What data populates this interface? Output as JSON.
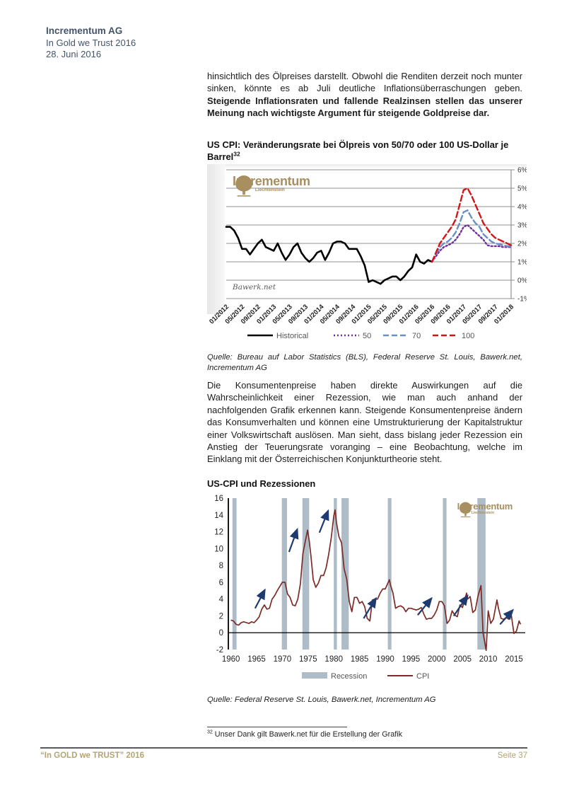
{
  "header": {
    "company": "Incrementum AG",
    "report": "In Gold we Trust 2016",
    "date": "28. Juni 2016"
  },
  "paragraph1": {
    "normal": "hinsichtlich des Ölpreises darstellt. Obwohl die Renditen derzeit noch munter sinken, könnte es ab Juli deutliche Inflationsüberraschungen geben. ",
    "bold": "Steigende Inflationsraten und fallende Realzinsen stellen das unserer Meinung nach wichtigste Argument für steigende Goldpreise dar."
  },
  "chart1": {
    "title": "US CPI: Veränderungsrate bei Ölpreis von 50/70 oder 100 US-Dollar je Barrel",
    "footnote_ref": "32",
    "logo_name": "Incrementum",
    "logo_sub": "Liechtenstein",
    "watermark": "Bawerk.net",
    "source": "Quelle: Bureau auf Labor Statistics (BLS), Federal Reserve St. Louis, Bawerk.net, Incrementum AG"
  },
  "paragraph2": "Die Konsumentenpreise haben direkte Auswirkungen auf die Wahrscheinlichkeit einer Rezession, wie man auch anhand der nachfolgenden Grafik erkennen kann. Steigende Konsumentenpreise ändern das Konsumverhalten und können eine Umstrukturierung der Kapitalstruktur einer Volkswirtschaft auslösen. Man sieht, dass bislang jeder Rezession ein Anstieg der Teuerungsrate voranging – eine Beobachtung, welche im Einklang mit der Österreichischen Konjunkturtheorie steht.",
  "chart2": {
    "title": "US-CPI und Rezessionen",
    "logo_name": "Incrementum",
    "logo_sub": "Liechtenstein",
    "source": "Quelle: Federal Reserve St. Louis, Bawerk.net, Incrementum AG"
  },
  "footnote": {
    "ref": "32",
    "text": "Unser Dank gilt Bawerk.net für die Erstellung der Grafik"
  },
  "footer": {
    "left": "“In GOLD we TRUST” 2016",
    "right": "Seite 37"
  },
  "chart_data": [
    {
      "type": "line",
      "title": "US CPI: Veränderungsrate bei Ölpreis von 50/70 oder 100 US-Dollar je Barrel",
      "xlabel": "",
      "ylabel": "",
      "ylim": [
        -1,
        6
      ],
      "y_tick_labels": [
        "6%",
        "5%",
        "4%",
        "3%",
        "2%",
        "1%",
        "0%",
        "-1%"
      ],
      "x_labels": [
        "01/2012",
        "05/2012",
        "09/2012",
        "01/2013",
        "05/2013",
        "09/2013",
        "01/2014",
        "05/2014",
        "09/2014",
        "01/2015",
        "05/2015",
        "09/2015",
        "01/2016",
        "05/2016",
        "09/2016",
        "01/2017",
        "05/2017",
        "09/2017",
        "01/2018"
      ],
      "months_span": 72,
      "legend_position": "bottom",
      "grid": true,
      "series": [
        {
          "name": "Historical",
          "color": "#000000",
          "style": "solid",
          "start_month": 0,
          "values": [
            2.9,
            2.9,
            2.7,
            2.3,
            1.7,
            1.7,
            1.4,
            1.7,
            2.0,
            2.2,
            1.8,
            1.7,
            1.6,
            2.0,
            1.5,
            1.1,
            1.4,
            1.8,
            2.0,
            1.5,
            1.2,
            1.0,
            1.2,
            1.5,
            1.6,
            1.1,
            1.5,
            2.0,
            2.1,
            2.1,
            2.0,
            1.7,
            1.7,
            1.7,
            1.3,
            0.8,
            -0.1,
            0.0,
            -0.1,
            -0.2,
            0.0,
            0.1,
            0.2,
            0.2,
            0.0,
            0.2,
            0.5,
            0.7,
            1.4,
            1.0,
            0.9,
            1.1,
            1.0
          ]
        },
        {
          "name": "50",
          "color": "#7030a0",
          "style": "dotted",
          "start_month": 52,
          "values": [
            1.0,
            1.3,
            1.6,
            1.8,
            1.9,
            2.0,
            2.2,
            2.5,
            2.9,
            3.0,
            2.8,
            2.6,
            2.4,
            2.2,
            1.9,
            1.85,
            1.85,
            1.85,
            1.8,
            1.8,
            1.8
          ]
        },
        {
          "name": "70",
          "color": "#6a8fc4",
          "style": "dashed",
          "start_month": 52,
          "values": [
            1.0,
            1.4,
            1.8,
            2.0,
            2.1,
            2.3,
            2.6,
            3.1,
            3.7,
            3.8,
            3.4,
            3.1,
            2.9,
            2.5,
            2.3,
            2.1,
            2.0,
            1.95,
            1.9,
            1.85,
            1.85
          ]
        },
        {
          "name": "100",
          "color": "#d01616",
          "style": "dashed",
          "start_month": 52,
          "values": [
            1.0,
            1.5,
            2.0,
            2.3,
            2.6,
            2.9,
            3.3,
            4.1,
            4.9,
            5.0,
            4.6,
            4.1,
            3.6,
            3.1,
            2.8,
            2.5,
            2.3,
            2.2,
            2.1,
            2.0,
            1.9
          ]
        }
      ]
    },
    {
      "type": "line",
      "title": "US-CPI und Rezessionen",
      "xlabel": "",
      "ylabel": "",
      "xlim": [
        1959.5,
        2017.2
      ],
      "ylim": [
        -2,
        16
      ],
      "y_ticks": [
        16,
        14,
        12,
        10,
        8,
        6,
        4,
        2,
        0,
        -2
      ],
      "x_ticks": [
        1960,
        1965,
        1970,
        1975,
        1980,
        1985,
        1990,
        1995,
        2000,
        2005,
        2010,
        2015
      ],
      "grid": false,
      "legend_position": "bottom",
      "line_color": "#7c2b26",
      "recession_color": "#adbcc6",
      "arrow_color": "#1e3a6e",
      "legend": [
        {
          "label": "Recession",
          "type": "band"
        },
        {
          "label": "CPI",
          "type": "line"
        }
      ],
      "x": [
        1960,
        1960.5,
        1961,
        1961.5,
        1962,
        1962.5,
        1963,
        1963.5,
        1964,
        1964.5,
        1965,
        1965.5,
        1966,
        1966.5,
        1967,
        1967.5,
        1968,
        1968.5,
        1969,
        1969.5,
        1970,
        1970.5,
        1971,
        1971.5,
        1972,
        1972.5,
        1973,
        1973.5,
        1974,
        1974.5,
        1974.9,
        1975.2,
        1975.5,
        1976,
        1976.5,
        1977,
        1977.5,
        1978,
        1978.5,
        1979,
        1979.5,
        1980,
        1980.25,
        1980.5,
        1981,
        1981.5,
        1982,
        1982.5,
        1983,
        1983.5,
        1984,
        1984.5,
        1985,
        1985.5,
        1986,
        1986.5,
        1987,
        1987.5,
        1988,
        1988.5,
        1989,
        1989.5,
        1990,
        1990.8,
        1991,
        1991.5,
        1992,
        1992.5,
        1993,
        1993.5,
        1994,
        1994.5,
        1995,
        1995.5,
        1996,
        1996.5,
        1997,
        1997.5,
        1998,
        1998.5,
        1999,
        1999.5,
        2000,
        2000.5,
        2001,
        2001.5,
        2002,
        2002.5,
        2003,
        2003.5,
        2004,
        2004.5,
        2005,
        2005.8,
        2006,
        2006.5,
        2007,
        2007.5,
        2008,
        2008.6,
        2009,
        2009.6,
        2010,
        2010.5,
        2011,
        2011.7,
        2012,
        2012.5,
        2013,
        2013.5,
        2014,
        2014.5,
        2015,
        2015.5,
        2016,
        2016.3
      ],
      "y": [
        1.5,
        1.4,
        1.0,
        0.9,
        1.2,
        1.3,
        1.2,
        1.1,
        1.3,
        1.2,
        1.5,
        1.9,
        2.8,
        3.3,
        2.8,
        2.9,
        4.0,
        4.4,
        5.0,
        5.5,
        6.0,
        6.0,
        4.6,
        4.2,
        3.3,
        3.2,
        4.0,
        5.8,
        9.4,
        11.0,
        12.2,
        11.0,
        9.4,
        6.3,
        5.4,
        5.9,
        6.8,
        6.8,
        7.7,
        9.3,
        11.3,
        13.9,
        14.6,
        13.1,
        11.4,
        10.7,
        7.6,
        6.4,
        3.7,
        2.5,
        4.2,
        4.2,
        3.5,
        3.7,
        3.1,
        1.7,
        1.4,
        3.9,
        4.0,
        4.0,
        4.7,
        5.2,
        5.2,
        6.3,
        5.7,
        4.7,
        2.9,
        3.1,
        3.2,
        3.0,
        2.5,
        2.9,
        2.9,
        2.8,
        2.7,
        2.8,
        3.0,
        2.2,
        1.6,
        1.7,
        1.7,
        2.1,
        2.7,
        3.7,
        3.7,
        3.2,
        1.1,
        1.5,
        2.6,
        2.1,
        1.9,
        3.3,
        3.0,
        4.7,
        4.0,
        4.3,
        2.4,
        2.7,
        4.3,
        5.6,
        0.0,
        -2.1,
        2.6,
        1.1,
        1.6,
        3.9,
        2.9,
        1.7,
        1.6,
        1.8,
        1.6,
        2.1,
        -0.1,
        0.2,
        1.4,
        1.0
      ],
      "recessions": [
        [
          1960.3,
          1961.1
        ],
        [
          1969.9,
          1970.9
        ],
        [
          1973.9,
          1975.2
        ],
        [
          1980.0,
          1980.6
        ],
        [
          1981.5,
          1982.9
        ],
        [
          1990.5,
          1991.2
        ],
        [
          2001.2,
          2001.9
        ],
        [
          2007.9,
          2009.5
        ]
      ],
      "arrows": [
        [
          1964.7,
          2.9,
          1966.6,
          5.1
        ],
        [
          1971.3,
          9.6,
          1972.9,
          12.3
        ],
        [
          1977.2,
          11.9,
          1978.9,
          14.5
        ],
        [
          1985.8,
          1.7,
          1988.2,
          4.1
        ],
        [
          1996.3,
          2.1,
          1999.0,
          4.1
        ],
        [
          2003.3,
          2.0,
          2006.0,
          4.4
        ],
        [
          2012.3,
          1.0,
          2014.8,
          2.7
        ]
      ]
    }
  ]
}
